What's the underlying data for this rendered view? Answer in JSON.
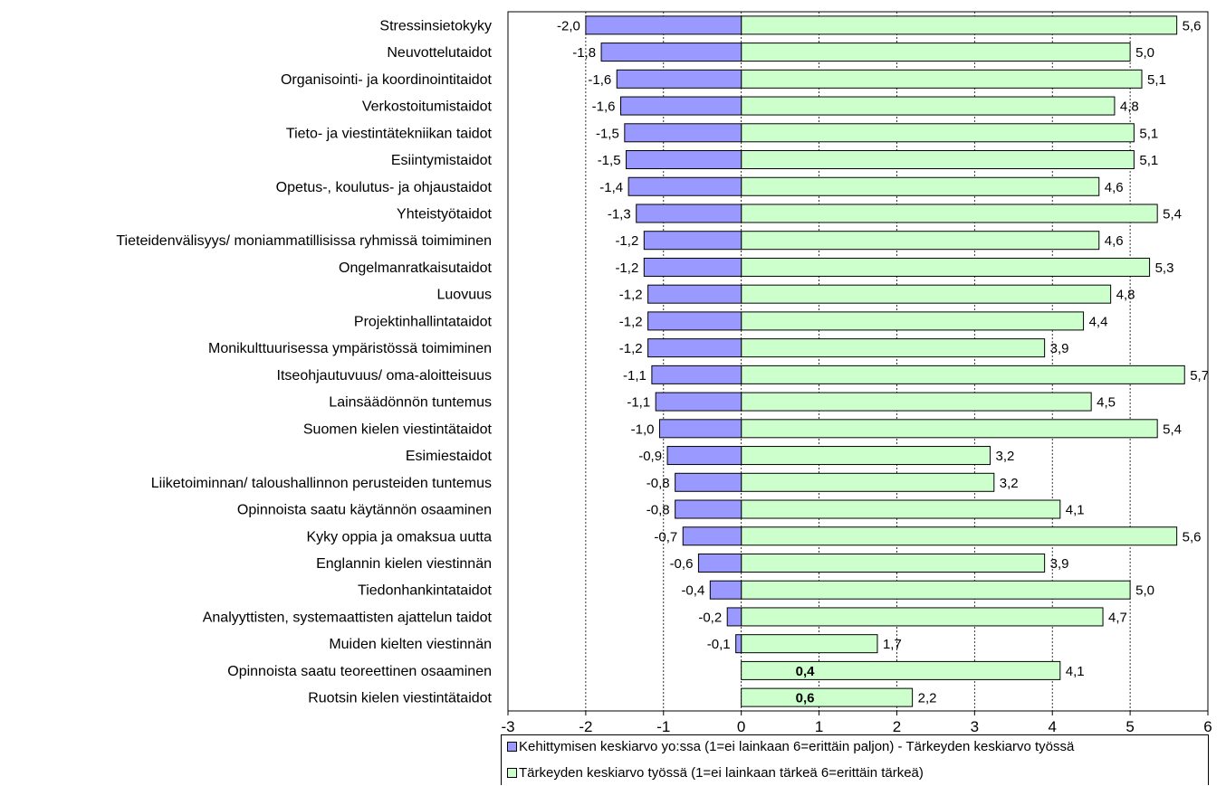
{
  "chart_data": {
    "type": "bar",
    "orientation": "horizontal",
    "categories": [
      "Stressinsietokyky",
      "Neuvottelutaidot",
      "Organisointi- ja koordinointitaidot",
      "Verkostoitumistaidot",
      "Tieto- ja viestintätekniikan taidot",
      "Esiintymistaidot",
      "Opetus-, koulutus- ja ohjaustaidot",
      "Yhteistyötaidot",
      "Tieteidenvälisyys/ moniammatillisissa ryhmissä toimiminen",
      "Ongelmanratkaisutaidot",
      "Luovuus",
      "Projektinhallintataidot",
      "Monikulttuurisessa ympäristössä toimiminen",
      "Itseohjautuvuus/ oma-aloitteisuus",
      "Lainsäädönnön tuntemus",
      "Suomen kielen viestintätaidot",
      "Esimiestaidot",
      "Liiketoiminnan/ taloushallinnon perusteiden tuntemus",
      "Opinnoista saatu käytännön osaaminen",
      "Kyky oppia ja omaksua uutta",
      "Englannin kielen viestinnän",
      "Tiedonhankintataidot",
      "Analyyttisten, systemaattisten ajattelun taidot",
      "Muiden kielten viestinnän",
      "Opinnoista saatu teoreettinen osaaminen",
      "Ruotsin kielen viestintätaidot"
    ],
    "series": [
      {
        "name": "Kehittymisen keskiarvo yo:ssa (1=ei lainkaan 6=erittäin paljon) - Tärkeyden keskiarvo työssä",
        "color": "#9999ff",
        "values": [
          -2.0,
          -1.8,
          -1.6,
          -1.55,
          -1.5,
          -1.48,
          -1.45,
          -1.35,
          -1.25,
          -1.25,
          -1.2,
          -1.2,
          -1.2,
          -1.15,
          -1.1,
          -1.05,
          -0.95,
          -0.85,
          -0.85,
          -0.75,
          -0.55,
          -0.4,
          -0.18,
          -0.07,
          0.4,
          0.6
        ],
        "labels": [
          "-2,0",
          "-1,8",
          "-1,6",
          "-1,6",
          "-1,5",
          "-1,5",
          "-1,4",
          "-1,3",
          "-1,2",
          "-1,2",
          "-1,2",
          "-1,2",
          "-1,2",
          "-1,1",
          "-1,1",
          "-1,0",
          "-0,9",
          "-0,8",
          "-0,8",
          "-0,7",
          "-0,6",
          "-0,4",
          "-0,2",
          "-0,1",
          "0,4",
          "0,6"
        ]
      },
      {
        "name": "Tärkeyden keskiarvo työssä (1=ei lainkaan tärkeä 6=erittäin tärkeä)",
        "color": "#ccffcc",
        "values": [
          5.6,
          5.0,
          5.15,
          4.8,
          5.05,
          5.05,
          4.6,
          5.35,
          4.6,
          5.25,
          4.75,
          4.4,
          3.9,
          5.7,
          4.5,
          5.35,
          3.2,
          3.25,
          4.1,
          5.6,
          3.9,
          5.0,
          4.65,
          1.75,
          4.1,
          2.2
        ],
        "labels": [
          "5,6",
          "5,0",
          "5,1",
          "4,8",
          "5,1",
          "5,1",
          "4,6",
          "5,4",
          "4,6",
          "5,3",
          "4,8",
          "4,4",
          "3,9",
          "5,7",
          "4,5",
          "5,4",
          "3,2",
          "3,2",
          "4,1",
          "5,6",
          "3,9",
          "5,0",
          "4,7",
          "1,7",
          "4,1",
          "2,2"
        ]
      }
    ],
    "xlim": [
      -3,
      6
    ],
    "xticks": [
      -3,
      -2,
      -1,
      0,
      1,
      2,
      3,
      4,
      5,
      6
    ],
    "grid": "vertical dashed",
    "legend_position": "bottom"
  }
}
